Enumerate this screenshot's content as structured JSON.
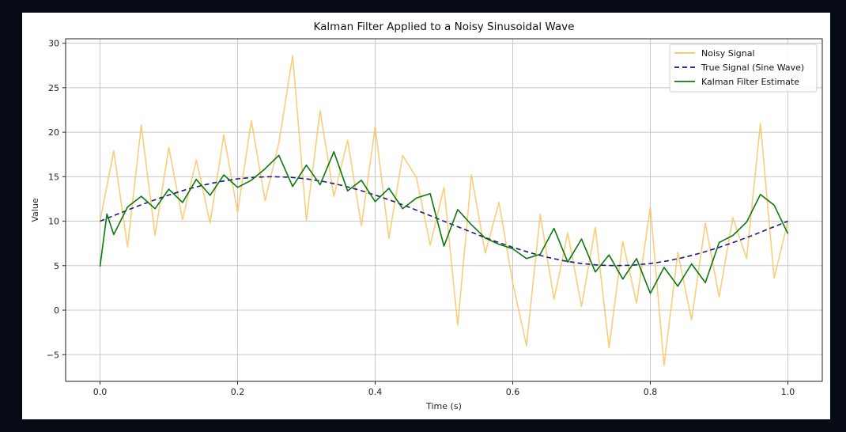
{
  "chart_data": {
    "type": "line",
    "title": "Kalman Filter Applied to a Noisy Sinusoidal Wave",
    "xlabel": "Time (s)",
    "ylabel": "Value",
    "xlim": [
      -0.05,
      1.05
    ],
    "ylim": [
      -8,
      30.5
    ],
    "xticks": [
      0.0,
      0.2,
      0.4,
      0.6,
      0.8,
      1.0
    ],
    "xtick_labels": [
      "0.0",
      "0.2",
      "0.4",
      "0.6",
      "0.8",
      "1.0"
    ],
    "yticks": [
      -5,
      0,
      5,
      10,
      15,
      20,
      25,
      30
    ],
    "ytick_labels": [
      "−5",
      "0",
      "5",
      "10",
      "15",
      "20",
      "25",
      "30"
    ],
    "grid": true,
    "legend_position": "top-right",
    "series": [
      {
        "name": "Noisy Signal",
        "color": "#f8c463",
        "style": "solid",
        "x": [
          0.0,
          0.02,
          0.04,
          0.06,
          0.08,
          0.1,
          0.12,
          0.14,
          0.16,
          0.18,
          0.2,
          0.22,
          0.24,
          0.26,
          0.28,
          0.3,
          0.32,
          0.34,
          0.36,
          0.38,
          0.4,
          0.42,
          0.44,
          0.46,
          0.48,
          0.5,
          0.52,
          0.54,
          0.56,
          0.58,
          0.6,
          0.62,
          0.64,
          0.66,
          0.68,
          0.7,
          0.72,
          0.74,
          0.76,
          0.78,
          0.8,
          0.82,
          0.84,
          0.86,
          0.88,
          0.9,
          0.92,
          0.94,
          0.96,
          0.98,
          1.0
        ],
        "y": [
          10.0,
          17.9,
          7.1,
          20.8,
          8.4,
          18.3,
          10.2,
          16.9,
          9.8,
          19.7,
          11.0,
          21.3,
          12.3,
          18.8,
          28.6,
          10.1,
          22.4,
          12.8,
          19.1,
          9.5,
          20.6,
          8.1,
          17.4,
          14.9,
          7.3,
          13.8,
          -1.7,
          15.2,
          6.4,
          12.1,
          3.1,
          -4.0,
          10.8,
          1.2,
          8.7,
          0.4,
          9.3,
          -4.2,
          7.7,
          0.8,
          11.6,
          -6.2,
          6.5,
          -1.1,
          9.8,
          1.5,
          10.4,
          5.8,
          21.0,
          3.6,
          10.0
        ]
      },
      {
        "name": "True Signal (Sine Wave)",
        "color": "#1a1a80",
        "style": "dashed",
        "x": [
          0.0,
          0.025,
          0.05,
          0.075,
          0.1,
          0.125,
          0.15,
          0.175,
          0.2,
          0.225,
          0.25,
          0.275,
          0.3,
          0.325,
          0.35,
          0.375,
          0.4,
          0.425,
          0.45,
          0.475,
          0.5,
          0.525,
          0.55,
          0.575,
          0.6,
          0.625,
          0.65,
          0.675,
          0.7,
          0.725,
          0.75,
          0.775,
          0.8,
          0.825,
          0.85,
          0.875,
          0.9,
          0.925,
          0.95,
          0.975,
          1.0
        ],
        "y": [
          10.0,
          10.78,
          11.55,
          12.27,
          12.94,
          13.54,
          14.05,
          14.46,
          14.76,
          14.94,
          15.0,
          14.94,
          14.76,
          14.46,
          14.05,
          13.54,
          12.94,
          12.27,
          11.55,
          10.78,
          10.0,
          9.22,
          8.45,
          7.73,
          7.06,
          6.46,
          5.95,
          5.54,
          5.24,
          5.06,
          5.0,
          5.06,
          5.24,
          5.54,
          5.95,
          6.46,
          7.06,
          7.73,
          8.45,
          9.22,
          10.0
        ]
      },
      {
        "name": "Kalman Filter Estimate",
        "color": "#0b780b",
        "style": "solid",
        "x": [
          0.0,
          0.01,
          0.02,
          0.04,
          0.06,
          0.08,
          0.1,
          0.12,
          0.14,
          0.16,
          0.18,
          0.2,
          0.22,
          0.24,
          0.26,
          0.28,
          0.3,
          0.32,
          0.34,
          0.36,
          0.38,
          0.4,
          0.42,
          0.44,
          0.46,
          0.48,
          0.5,
          0.52,
          0.54,
          0.56,
          0.58,
          0.6,
          0.62,
          0.64,
          0.66,
          0.68,
          0.7,
          0.72,
          0.74,
          0.76,
          0.78,
          0.8,
          0.82,
          0.84,
          0.86,
          0.88,
          0.9,
          0.92,
          0.94,
          0.96,
          0.98,
          1.0
        ],
        "y": [
          4.9,
          10.8,
          8.5,
          11.6,
          12.8,
          11.4,
          13.6,
          12.1,
          14.7,
          12.9,
          15.2,
          13.8,
          14.6,
          15.9,
          17.4,
          13.9,
          16.3,
          14.1,
          17.8,
          13.4,
          14.6,
          12.2,
          13.7,
          11.4,
          12.6,
          13.1,
          7.2,
          11.3,
          9.6,
          8.1,
          7.4,
          6.9,
          5.8,
          6.3,
          9.2,
          5.4,
          8.0,
          4.3,
          6.2,
          3.5,
          5.8,
          1.9,
          4.8,
          2.7,
          5.2,
          3.1,
          7.6,
          8.4,
          9.9,
          13.0,
          11.8,
          8.6
        ]
      }
    ]
  }
}
